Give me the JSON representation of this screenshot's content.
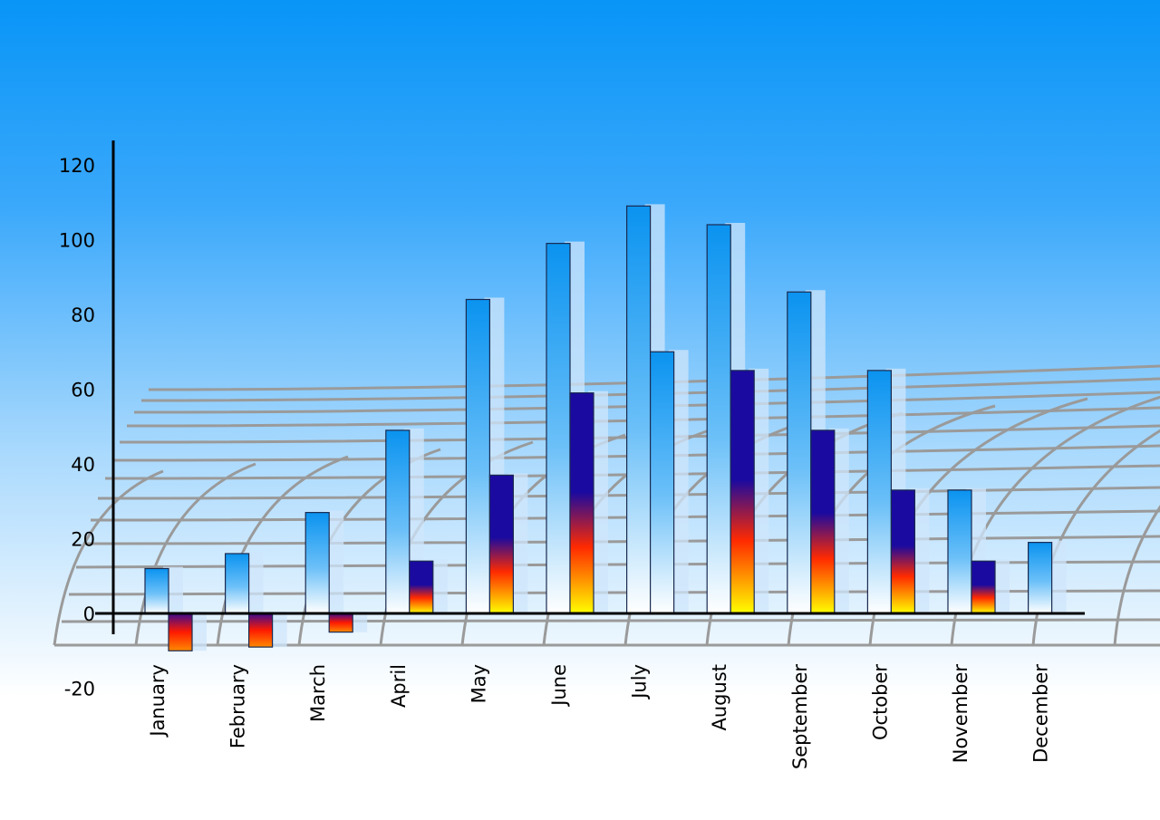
{
  "chart_data": {
    "type": "bar",
    "title": "",
    "xlabel": "",
    "ylabel": "",
    "ylim": [
      -20,
      120
    ],
    "yticks": [
      -20,
      0,
      20,
      40,
      60,
      80,
      100,
      120
    ],
    "grid": false,
    "categories": [
      "January",
      "February",
      "March",
      "April",
      "May",
      "June",
      "July",
      "August",
      "September",
      "October",
      "November",
      "December"
    ],
    "series": [
      {
        "values": [
          12,
          16,
          27,
          49,
          84,
          99,
          109,
          104,
          86,
          65,
          33,
          19
        ],
        "color_top": "#0a93f0",
        "color_bottom": "#ffffff"
      },
      {
        "values": [
          -10,
          -9,
          -5,
          14,
          37,
          59,
          70,
          65,
          49,
          33,
          14,
          null
        ],
        "color_top": "#1a0aa0",
        "color_mid": "#ff2a00",
        "color_bottom": "#ffff00"
      }
    ]
  }
}
